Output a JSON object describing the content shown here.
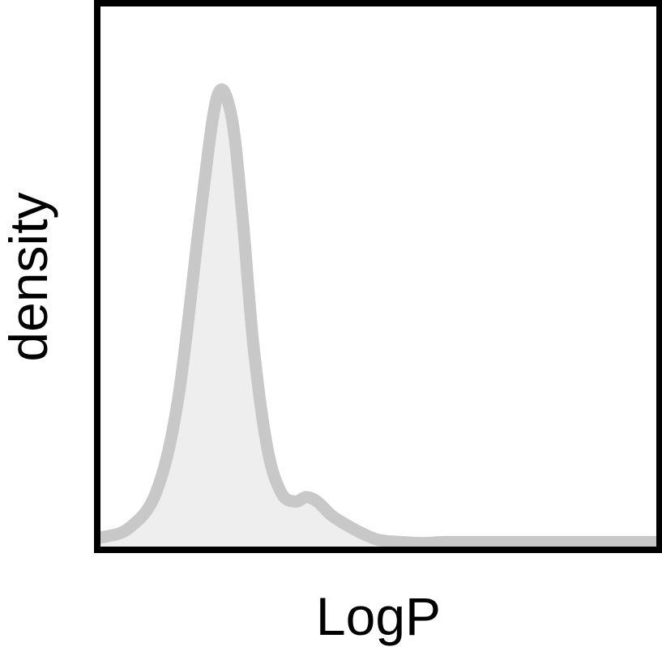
{
  "chart_data": {
    "type": "area",
    "title": "",
    "xlabel": "LogP",
    "ylabel": "density",
    "xlim": [
      0,
      1
    ],
    "ylim": [
      0,
      1.2
    ],
    "grid": false,
    "legend": "none",
    "x_ticks_shown": false,
    "y_ticks_shown": false,
    "series": [
      {
        "x": [
          0.0,
          0.05,
          0.1,
          0.14,
          0.18,
          0.21,
          0.235,
          0.255,
          0.275,
          0.3,
          0.325,
          0.35,
          0.37,
          0.39,
          0.415,
          0.44,
          0.47,
          0.5,
          0.54,
          0.58,
          0.62,
          0.68,
          0.76,
          0.86,
          0.95,
          1.0
        ],
        "y": [
          0.02,
          0.04,
          0.12,
          0.33,
          0.74,
          1.0,
          0.96,
          0.74,
          0.45,
          0.22,
          0.12,
          0.1,
          0.11,
          0.1,
          0.07,
          0.05,
          0.03,
          0.015,
          0.01,
          0.008,
          0.01,
          0.01,
          0.01,
          0.01,
          0.01,
          0.01
        ]
      }
    ],
    "colors": {
      "line": "#c8c8c8",
      "fill": "#eeeeee",
      "frame": "#000000"
    }
  }
}
